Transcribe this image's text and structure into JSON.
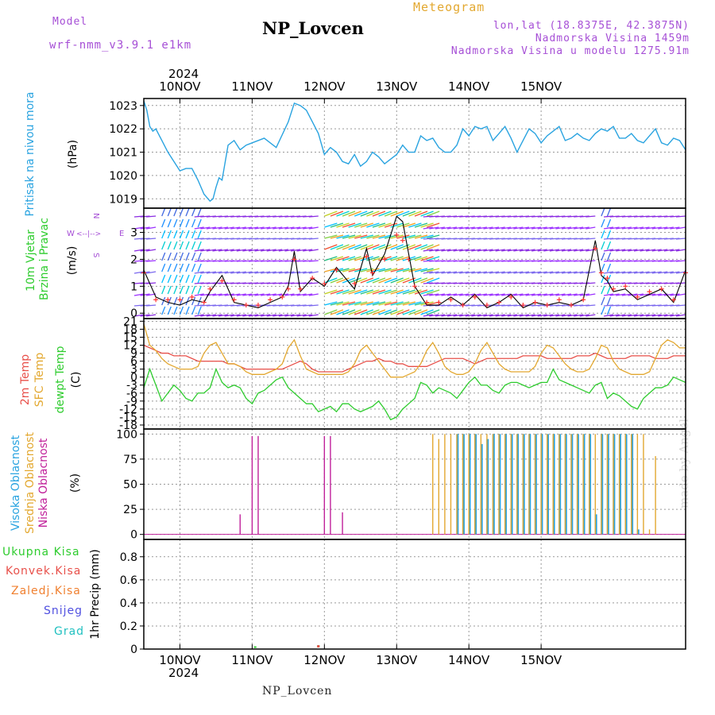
{
  "header": {
    "model_label": "Model",
    "model_name": "wrf-nmm_v3.9.1 e1km",
    "station_title": "NP_Lovcen",
    "meteogram_label": "Meteogram",
    "lonlat": "lon,lat (18.8375E, 42.3875N)",
    "altitude": "Nadmorska Visina 1459m",
    "model_altitude": "Nadmorska Visina u modelu 1275.91m",
    "year_top": "2024",
    "year_bottom": "2024",
    "footer_station": "NP_Lovcen",
    "watermark": "made by Angel"
  },
  "colors": {
    "pressure": "#29a3e0",
    "temp2m": "#e8504a",
    "sfctemp": "#e3a830",
    "dewpt": "#2ecc2e",
    "high_cloud": "#29a3e0",
    "mid_cloud": "#e3a830",
    "low_cloud": "#c0209a",
    "wind_speed": "#000000",
    "wind_gust": "#ff3333",
    "precip_total": "#2ecc2e",
    "precip_conv": "#e8504a",
    "precip_frozen": "#f08030",
    "precip_snow": "#5050e0",
    "precip_graupel": "#20c0c0"
  },
  "panel_labels": {
    "pressure": {
      "name": "Pritisak na nivou mora",
      "unit": "(hPa)"
    },
    "wind": {
      "name1": "10m Vjetar",
      "name2": "Brzina i Pravac",
      "unit": "(m/s)",
      "compass_w": "W",
      "compass_e": "E",
      "compass_n": "N",
      "compass_s": "S"
    },
    "temp": {
      "name1": "2m Temp",
      "name2": "SFC Temp",
      "name3": "dewpt Temp",
      "unit": "(C)"
    },
    "cloud": {
      "name1": "Visoka Oblacnost",
      "name2": "Srednja Oblacnost",
      "name3": "Niska Oblacnost",
      "unit": "(%)"
    },
    "precip": {
      "items": [
        "Ukupna Kisa",
        "Konvek.Kisa",
        "Zaledj.Kisa",
        "Snijeg",
        "Grad"
      ],
      "unit": "1hr Precip (mm)"
    }
  },
  "chart_data": [
    {
      "type": "line",
      "panel": "pressure",
      "x_ticks": [
        "10NOV",
        "11NOV",
        "12NOV",
        "13NOV",
        "14NOV",
        "15NOV"
      ],
      "ylabel": "(hPa)",
      "yticks": [
        1019,
        1020,
        1021,
        1022,
        1023
      ],
      "ylim": [
        1018.6,
        1023.3
      ],
      "grid": true,
      "x_hours": [
        0,
        1,
        2,
        3,
        4,
        6,
        8,
        10,
        12,
        14,
        16,
        18,
        20,
        22,
        23,
        24,
        25,
        26,
        28,
        30,
        32,
        34,
        36,
        40,
        44,
        48,
        50,
        52,
        54,
        56,
        58,
        60,
        62,
        64,
        66,
        68,
        70,
        72,
        74,
        76,
        78,
        80,
        82,
        84,
        86,
        88,
        90,
        92,
        94,
        96,
        98,
        100,
        102,
        104,
        106,
        108,
        110,
        112,
        114,
        116,
        118,
        120,
        122,
        124,
        126,
        128,
        130,
        132,
        134,
        136,
        138,
        140,
        142,
        144,
        146,
        148,
        150,
        152,
        154,
        156,
        158,
        160,
        162,
        164,
        166,
        168,
        170,
        172,
        174,
        176,
        178,
        180
      ],
      "values": [
        1023.2,
        1022.8,
        1022.1,
        1021.9,
        1022.0,
        1021.5,
        1021.0,
        1020.6,
        1020.2,
        1020.3,
        1020.3,
        1019.8,
        1019.2,
        1018.9,
        1019.0,
        1019.5,
        1019.9,
        1019.8,
        1021.3,
        1021.5,
        1021.1,
        1021.3,
        1021.4,
        1021.6,
        1021.2,
        1022.3,
        1023.1,
        1023.0,
        1022.8,
        1022.3,
        1021.8,
        1020.9,
        1021.2,
        1021.0,
        1020.6,
        1020.5,
        1020.9,
        1020.4,
        1020.6,
        1021.0,
        1020.8,
        1020.5,
        1020.7,
        1020.9,
        1021.3,
        1021.0,
        1021.0,
        1021.7,
        1021.5,
        1021.6,
        1021.2,
        1021.0,
        1021.0,
        1021.3,
        1022.0,
        1021.7,
        1022.1,
        1022.0,
        1022.1,
        1021.5,
        1021.8,
        1022.1,
        1021.6,
        1021.0,
        1021.5,
        1022.0,
        1021.8,
        1021.4,
        1021.7,
        1021.9,
        1022.1,
        1021.5,
        1021.6,
        1021.8,
        1021.6,
        1021.5,
        1021.8,
        1022.0,
        1021.9,
        1022.1,
        1021.6,
        1021.6,
        1021.8,
        1021.5,
        1021.4,
        1021.7,
        1022.0,
        1021.4,
        1021.3,
        1021.6,
        1021.5,
        1021.1
      ]
    },
    {
      "type": "line",
      "panel": "wind",
      "ylabel": "(m/s)",
      "yticks": [
        0,
        1,
        2,
        3
      ],
      "ylim": [
        -0.2,
        3.9
      ],
      "grid": true,
      "x_hours": [
        0,
        4,
        8,
        12,
        16,
        20,
        22,
        26,
        30,
        34,
        38,
        42,
        46,
        48,
        50,
        52,
        56,
        60,
        64,
        70,
        74,
        76,
        80,
        84,
        86,
        88,
        90,
        94,
        98,
        102,
        106,
        110,
        114,
        118,
        122,
        126,
        130,
        134,
        138,
        142,
        146,
        150,
        152,
        154,
        156,
        160,
        164,
        168,
        172,
        176,
        180
      ],
      "speed": [
        1.6,
        0.6,
        0.4,
        0.3,
        0.5,
        0.4,
        0.8,
        1.4,
        0.4,
        0.3,
        0.2,
        0.4,
        0.6,
        1.0,
        2.3,
        0.8,
        1.3,
        1.0,
        1.7,
        0.9,
        2.4,
        1.4,
        2.2,
        3.6,
        3.4,
        2.2,
        1.0,
        0.3,
        0.3,
        0.6,
        0.3,
        0.7,
        0.2,
        0.4,
        0.7,
        0.2,
        0.4,
        0.3,
        0.4,
        0.3,
        0.5,
        2.7,
        1.4,
        1.2,
        0.8,
        0.9,
        0.5,
        0.7,
        0.9,
        0.4,
        1.6
      ],
      "gust": [
        1.5,
        0.5,
        0.5,
        0.5,
        0.6,
        0.4,
        0.9,
        1.2,
        0.5,
        0.3,
        0.3,
        0.5,
        0.6,
        0.9,
        2.0,
        0.9,
        1.3,
        1.1,
        1.6,
        1.1,
        2.1,
        1.5,
        2.0,
        2.9,
        2.7,
        2.0,
        1.0,
        0.4,
        0.4,
        0.5,
        0.3,
        0.6,
        0.3,
        0.4,
        0.6,
        0.3,
        0.4,
        0.3,
        0.5,
        0.3,
        0.5,
        2.4,
        1.5,
        1.3,
        0.9,
        1.0,
        0.6,
        0.8,
        0.9,
        0.5,
        1.5
      ]
    },
    {
      "type": "line",
      "panel": "temperature",
      "ylabel": "(C)",
      "yticks": [
        21,
        18,
        15,
        12,
        9,
        6,
        3,
        0,
        -3,
        -6,
        -9,
        -12,
        -15,
        -18
      ],
      "ylim": [
        -19.5,
        22
      ],
      "grid": true,
      "x_hours": [
        0,
        2,
        4,
        6,
        8,
        10,
        12,
        14,
        16,
        18,
        20,
        22,
        24,
        26,
        28,
        30,
        32,
        34,
        36,
        38,
        40,
        42,
        44,
        46,
        48,
        50,
        52,
        54,
        56,
        58,
        60,
        62,
        64,
        66,
        68,
        70,
        72,
        74,
        76,
        78,
        80,
        82,
        84,
        86,
        88,
        90,
        92,
        94,
        96,
        98,
        100,
        102,
        104,
        106,
        108,
        110,
        112,
        114,
        116,
        118,
        120,
        122,
        124,
        126,
        128,
        130,
        132,
        134,
        136,
        138,
        140,
        142,
        144,
        146,
        148,
        150,
        152,
        154,
        156,
        158,
        160,
        162,
        164,
        166,
        168,
        170,
        172,
        174,
        176,
        178,
        180
      ],
      "series": [
        {
          "name": "2m Temp",
          "values": [
            12,
            11,
            10,
            9,
            9,
            8,
            8,
            8,
            7,
            6,
            6,
            6,
            6,
            6,
            5,
            5,
            4,
            3,
            3,
            3,
            3,
            3,
            3,
            3,
            4,
            5,
            6,
            5,
            3,
            2,
            2,
            2,
            2,
            2,
            3,
            4,
            5,
            6,
            6,
            7,
            6,
            6,
            5,
            5,
            4,
            4,
            4,
            4,
            5,
            6,
            7,
            7,
            7,
            7,
            6,
            5,
            6,
            7,
            7,
            7,
            7,
            7,
            7,
            8,
            8,
            8,
            8,
            7,
            7,
            7,
            7,
            7,
            8,
            8,
            8,
            9,
            8,
            7,
            7,
            7,
            7,
            8,
            8,
            8,
            8,
            7,
            7,
            7,
            8,
            8,
            8
          ]
        },
        {
          "name": "SFC Temp",
          "values": [
            20,
            12,
            10,
            7,
            5,
            4,
            3,
            3,
            3,
            4,
            9,
            12,
            13,
            9,
            5,
            5,
            4,
            2,
            1,
            1,
            1,
            2,
            3,
            5,
            11,
            14,
            8,
            3,
            2,
            1,
            1,
            1,
            1,
            1,
            2,
            5,
            10,
            12,
            9,
            6,
            3,
            0,
            0,
            0,
            1,
            2,
            5,
            10,
            13,
            9,
            4,
            2,
            1,
            1,
            2,
            5,
            10,
            13,
            9,
            5,
            3,
            2,
            2,
            2,
            2,
            4,
            9,
            12,
            11,
            8,
            5,
            3,
            2,
            2,
            3,
            7,
            12,
            11,
            6,
            3,
            2,
            1,
            1,
            1,
            2,
            7,
            12,
            14,
            13,
            11,
            11
          ]
        },
        {
          "name": "dewpt Temp",
          "values": [
            -4,
            3,
            -3,
            -9,
            -6,
            -3,
            -5,
            -8,
            -9,
            -6,
            -6,
            -4,
            3,
            -2,
            -4,
            -3,
            -4,
            -8,
            -10,
            -6,
            -5,
            -3,
            -1,
            0,
            -4,
            -6,
            -8,
            -10,
            -10,
            -13,
            -12,
            -11,
            -13,
            -10,
            -10,
            -12,
            -13,
            -12,
            -11,
            -9,
            -12,
            -16,
            -15,
            -12,
            -10,
            -8,
            -2,
            -3,
            -6,
            -4,
            -5,
            -6,
            -8,
            -5,
            -2,
            0,
            -3,
            -3,
            -5,
            -6,
            -3,
            -2,
            -2,
            -3,
            -4,
            -3,
            -2,
            -2,
            3,
            -1,
            -2,
            -3,
            -4,
            -5,
            -6,
            -3,
            -2,
            -8,
            -6,
            -7,
            -9,
            -11,
            -12,
            -8,
            -6,
            -4,
            -4,
            -3,
            0,
            -1,
            -2
          ]
        }
      ]
    },
    {
      "type": "bar",
      "panel": "cloud",
      "ylabel": "(%)",
      "yticks": [
        0,
        25,
        50,
        75,
        100
      ],
      "ylim": [
        -5,
        105
      ],
      "grid": true,
      "series": [
        {
          "name": "Visoka Oblacnost",
          "hours": [
            104,
            106,
            108,
            110,
            112,
            114,
            116,
            118,
            120,
            122,
            124,
            126,
            128,
            130,
            132,
            134,
            136,
            138,
            140,
            142,
            144,
            146,
            148,
            150,
            152,
            154,
            156,
            158,
            160,
            162,
            164,
            166
          ],
          "values": [
            100,
            100,
            100,
            100,
            90,
            95,
            100,
            100,
            100,
            100,
            100,
            100,
            100,
            100,
            100,
            100,
            100,
            100,
            100,
            100,
            100,
            100,
            100,
            20,
            100,
            100,
            100,
            100,
            100,
            100,
            5,
            0
          ]
        },
        {
          "name": "Srednja Oblacnost",
          "hours": [
            96,
            98,
            100,
            102,
            104,
            106,
            108,
            110,
            112,
            114,
            116,
            118,
            120,
            122,
            124,
            126,
            128,
            130,
            132,
            134,
            136,
            138,
            140,
            142,
            144,
            146,
            148,
            150,
            152,
            154,
            156,
            158,
            160,
            162,
            164,
            166,
            168,
            170
          ],
          "values": [
            100,
            95,
            100,
            100,
            100,
            100,
            100,
            100,
            100,
            100,
            100,
            100,
            100,
            100,
            100,
            100,
            100,
            100,
            100,
            100,
            100,
            100,
            100,
            100,
            100,
            100,
            100,
            100,
            100,
            100,
            100,
            100,
            100,
            100,
            100,
            100,
            5,
            78
          ]
        },
        {
          "name": "Niska Oblacnost",
          "hours": [
            32,
            36,
            38,
            60,
            62,
            66
          ],
          "values": [
            20,
            98,
            98,
            98,
            98,
            22
          ]
        }
      ]
    },
    {
      "type": "bar",
      "panel": "precip",
      "ylabel": "1hr Precip (mm)",
      "yticks": [
        0,
        0.2,
        0.4,
        0.6,
        0.8
      ],
      "ylim": [
        0,
        0.95
      ],
      "grid": true,
      "series": [
        {
          "name": "Ukupna Kisa",
          "hours": [
            37,
            58
          ],
          "values": [
            0.01,
            0.02
          ]
        },
        {
          "name": "Konvek.Kisa",
          "hours": [
            58
          ],
          "values": [
            0.02
          ]
        }
      ]
    }
  ]
}
